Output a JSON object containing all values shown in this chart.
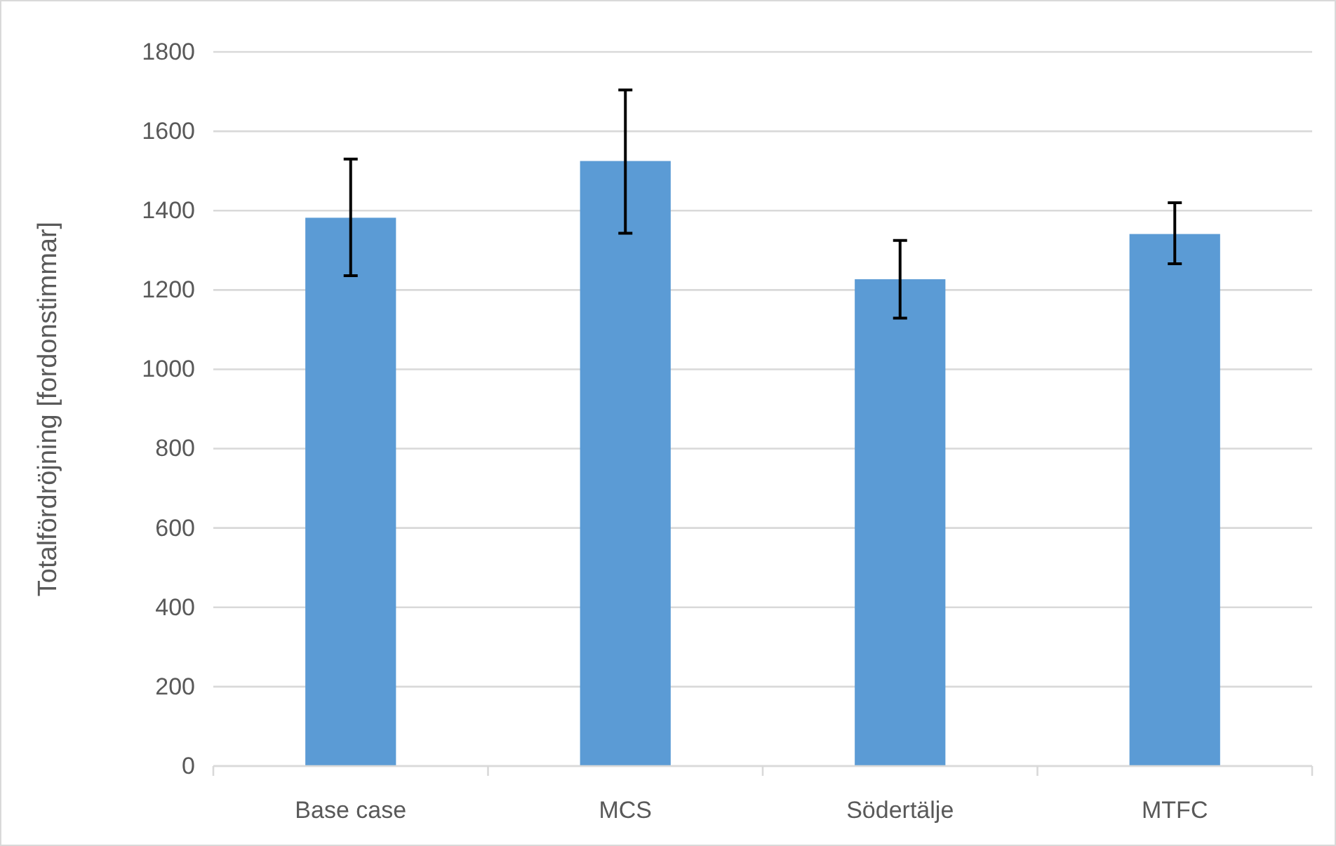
{
  "chart_data": {
    "type": "bar",
    "ylabel": "Totalfördröjning [fordonstimmar]",
    "categories": [
      "Base case",
      "MCS",
      "Södertälje",
      "MTFC"
    ],
    "values": [
      1382,
      1525,
      1227,
      1341
    ],
    "errors": [
      [
        1236,
        1530
      ],
      [
        1343,
        1704
      ],
      [
        1129,
        1325
      ],
      [
        1266,
        1420
      ]
    ],
    "color": "#5b9bd5",
    "ylim": [
      0,
      1800
    ],
    "yticks": [
      0,
      200,
      400,
      600,
      800,
      1000,
      1200,
      1400,
      1600,
      1800
    ],
    "grid": "y"
  }
}
